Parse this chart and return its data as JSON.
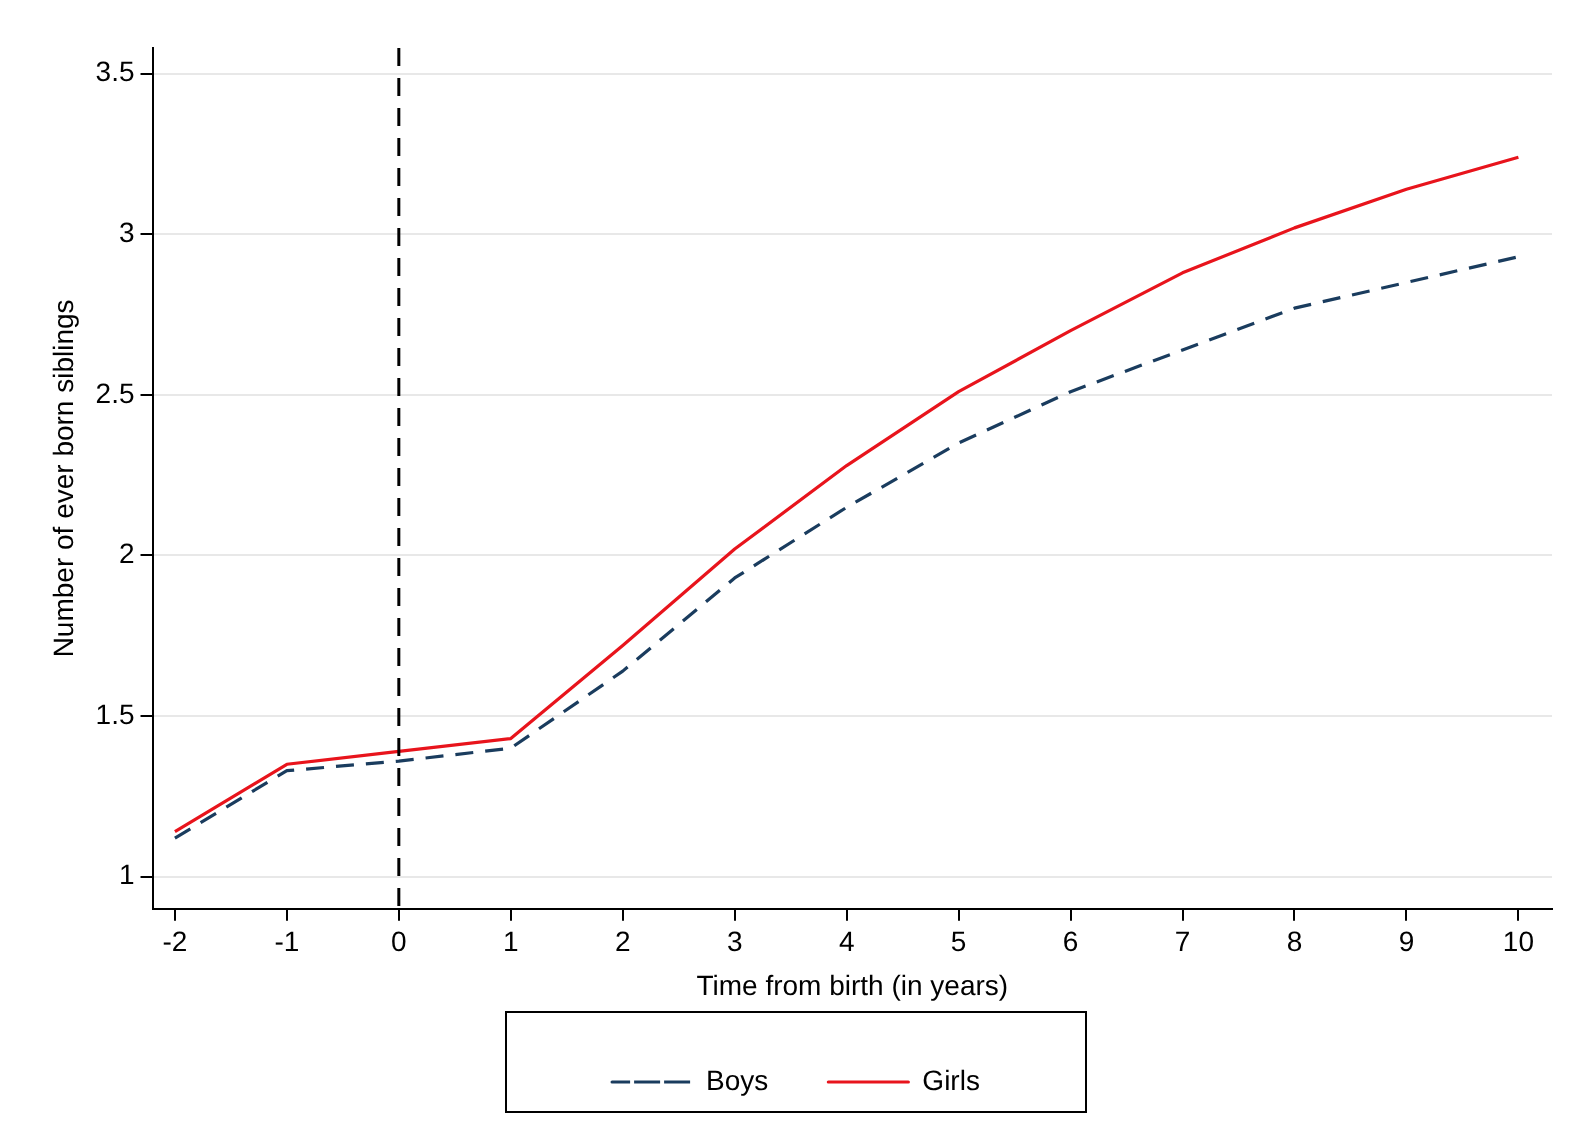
{
  "chart_data": {
    "type": "line",
    "xlabel": "Time from birth (in years)",
    "ylabel": "Number of ever born siblings",
    "x": [
      -2,
      -1,
      0,
      1,
      2,
      3,
      4,
      5,
      6,
      7,
      8,
      9,
      10
    ],
    "series": [
      {
        "name": "Boys",
        "color": "#1a3c5e",
        "line_style": "dashed",
        "values": [
          1.12,
          1.33,
          1.36,
          1.4,
          1.64,
          1.93,
          2.15,
          2.35,
          2.51,
          2.64,
          2.77,
          2.85,
          2.93
        ]
      },
      {
        "name": "Girls",
        "color": "#e8141c",
        "line_style": "solid",
        "values": [
          1.14,
          1.35,
          1.39,
          1.43,
          1.72,
          2.02,
          2.28,
          2.51,
          2.7,
          2.88,
          3.02,
          3.14,
          3.24
        ]
      }
    ],
    "xlim": [
      -2.2,
      10.3
    ],
    "xticks": [
      -2,
      -1,
      0,
      1,
      2,
      3,
      4,
      5,
      6,
      7,
      8,
      9,
      10
    ],
    "ylim": [
      0.9,
      3.58
    ],
    "yticks": [
      1,
      1.5,
      2,
      2.5,
      3,
      3.5
    ],
    "ref_lines": [
      {
        "axis": "x",
        "value": 0,
        "color": "#000000",
        "line_style": "dashed"
      }
    ],
    "grid": "y",
    "legend": "bottom",
    "marker": "none"
  }
}
